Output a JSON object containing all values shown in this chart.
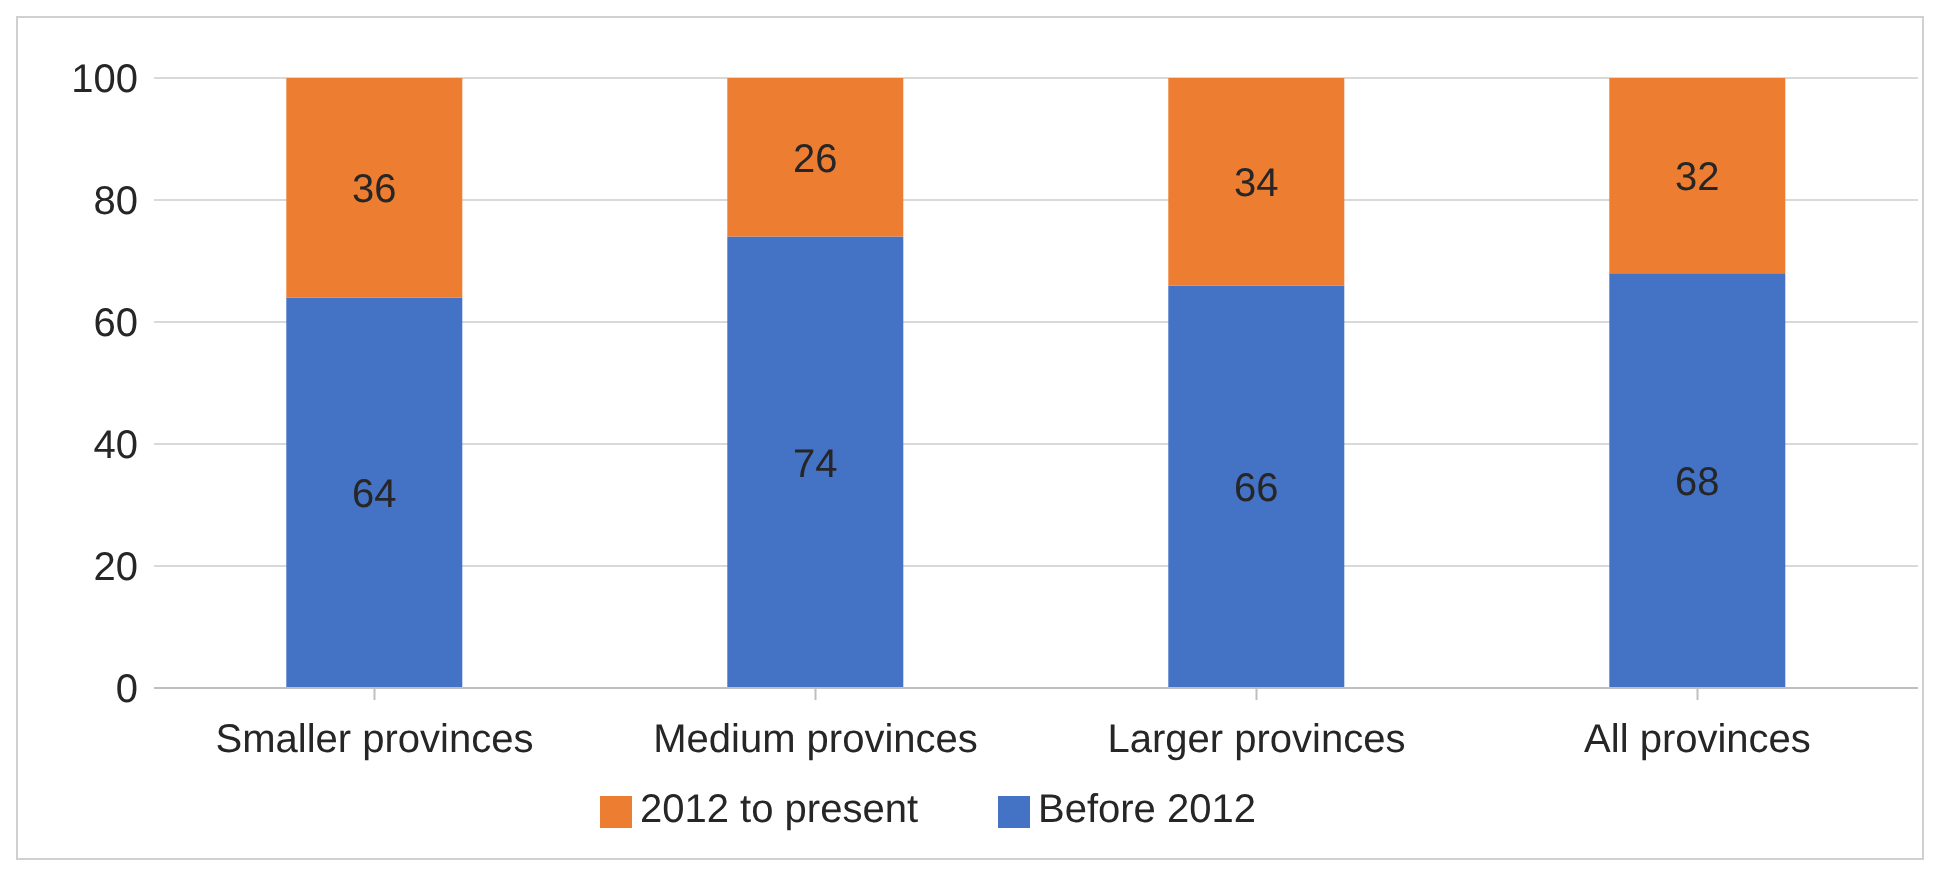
{
  "chart_data": {
    "type": "bar",
    "categories": [
      "Smaller provinces",
      "Medium provinces",
      "Larger provinces",
      "All provinces"
    ],
    "series": [
      {
        "name": "Before 2012",
        "color": "#4472c4",
        "values": [
          64,
          74,
          66,
          68
        ]
      },
      {
        "name": "2012 to present",
        "color": "#ed7d31",
        "values": [
          36,
          26,
          34,
          32
        ]
      }
    ],
    "stacked": true,
    "data_labels": true,
    "ylim": [
      0,
      100
    ],
    "yticks": [
      0,
      20,
      40,
      60,
      80,
      100
    ],
    "grid": "y",
    "legend": "bottom"
  }
}
